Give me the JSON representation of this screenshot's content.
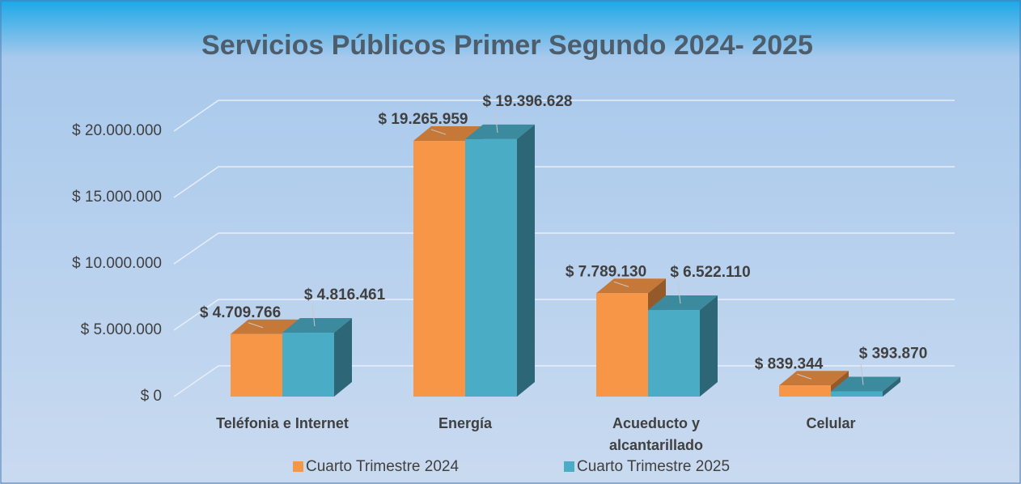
{
  "chart_data": {
    "type": "bar3d",
    "title": "Servicios Públicos Primer Segundo 2024- 2025",
    "categories": [
      "Teléfonia e Internet",
      "Energía",
      "Acueducto y alcantarillado",
      "Celular"
    ],
    "series": [
      {
        "name": "Cuarto Trimestre 2024",
        "color": "#f79646",
        "values": [
          4709766,
          19265959,
          7789130,
          839344
        ],
        "value_labels": [
          "$ 4.709.766",
          "$ 19.265.959",
          "$ 7.789.130",
          "$ 839.344"
        ]
      },
      {
        "name": "Cuarto Trimestre 2025",
        "color": "#4bacc6",
        "values": [
          4816461,
          19396628,
          6522110,
          393870
        ],
        "value_labels": [
          "$ 4.816.461",
          "$ 19.396.628",
          "$ 6.522.110",
          "$ 393.870"
        ]
      }
    ],
    "ylim": [
      0,
      20000000
    ],
    "yticks": [
      {
        "value": 0,
        "label": "$ 0"
      },
      {
        "value": 5000000,
        "label": "$ 5.000.000"
      },
      {
        "value": 10000000,
        "label": "$ 10.000.000"
      },
      {
        "value": 15000000,
        "label": "$ 15.000.000"
      },
      {
        "value": 20000000,
        "label": "$ 20.000.000"
      }
    ],
    "grid": true
  }
}
